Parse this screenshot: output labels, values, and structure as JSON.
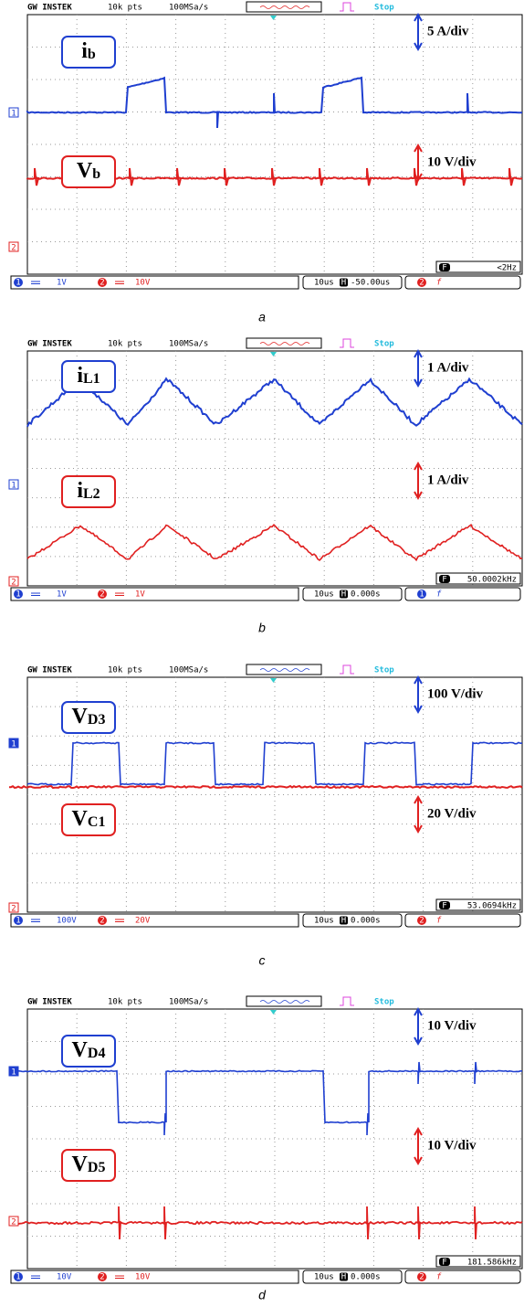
{
  "panels": [
    {
      "caption": "a",
      "header": {
        "brand": "GW INSTEK",
        "points": "10k pts",
        "rate": "100MSa/s",
        "status": "Stop"
      },
      "traces": [
        {
          "main": "i",
          "sub": "b",
          "scale": "5 A/div"
        },
        {
          "main": "V",
          "sub": "b",
          "scale": "10 V/div"
        }
      ],
      "markers": [
        "1",
        "2"
      ],
      "footer": {
        "ch1_no": "1",
        "ch1": "1V",
        "ch2_no": "2",
        "ch2": "10V",
        "timebase": "10us",
        "h_icon": "H",
        "position": "-50.00us",
        "trigger_source": "2",
        "trigger_icon": "f",
        "f_icon": "F",
        "frequency": "<2Hz"
      }
    },
    {
      "caption": "b",
      "header": {
        "brand": "GW INSTEK",
        "points": "10k pts",
        "rate": "100MSa/s",
        "status": "Stop"
      },
      "traces": [
        {
          "main": "i",
          "sub": "L1",
          "scale": "1 A/div"
        },
        {
          "main": "i",
          "sub": "L2",
          "scale": "1 A/div"
        }
      ],
      "markers": [
        "1",
        "2"
      ],
      "footer": {
        "ch1_no": "1",
        "ch1": "1V",
        "ch2_no": "2",
        "ch2": "1V",
        "timebase": "10us",
        "h_icon": "H",
        "position": "0.000s",
        "trigger_source": "1",
        "trigger_icon": "f",
        "f_icon": "F",
        "frequency": "50.0002kHz"
      }
    },
    {
      "caption": "c",
      "header": {
        "brand": "GW INSTEK",
        "points": "10k pts",
        "rate": "100MSa/s",
        "status": "Stop"
      },
      "traces": [
        {
          "main": "V",
          "sub": "D3",
          "scale": "100 V/div"
        },
        {
          "main": "V",
          "sub": "C1",
          "scale": "20 V/div"
        }
      ],
      "markers": [
        "1",
        "2"
      ],
      "footer": {
        "ch1_no": "1",
        "ch1": "100V",
        "ch2_no": "2",
        "ch2": "20V",
        "timebase": "10us",
        "h_icon": "H",
        "position": "0.000s",
        "trigger_source": "2",
        "trigger_icon": "f",
        "f_icon": "F",
        "frequency": "53.0694kHz"
      }
    },
    {
      "caption": "d",
      "header": {
        "brand": "GW INSTEK",
        "points": "10k pts",
        "rate": "100MSa/s",
        "status": "Stop"
      },
      "traces": [
        {
          "main": "V",
          "sub": "D4",
          "scale": "10 V/div"
        },
        {
          "main": "V",
          "sub": "D5",
          "scale": "10 V/div"
        }
      ],
      "markers": [
        "1",
        "2"
      ],
      "footer": {
        "ch1_no": "1",
        "ch1": "10V",
        "ch2_no": "2",
        "ch2": "10V",
        "timebase": "10us",
        "h_icon": "H",
        "position": "0.000s",
        "trigger_source": "2",
        "trigger_icon": "f",
        "f_icon": "F",
        "frequency": "181.586kHz"
      }
    }
  ]
}
